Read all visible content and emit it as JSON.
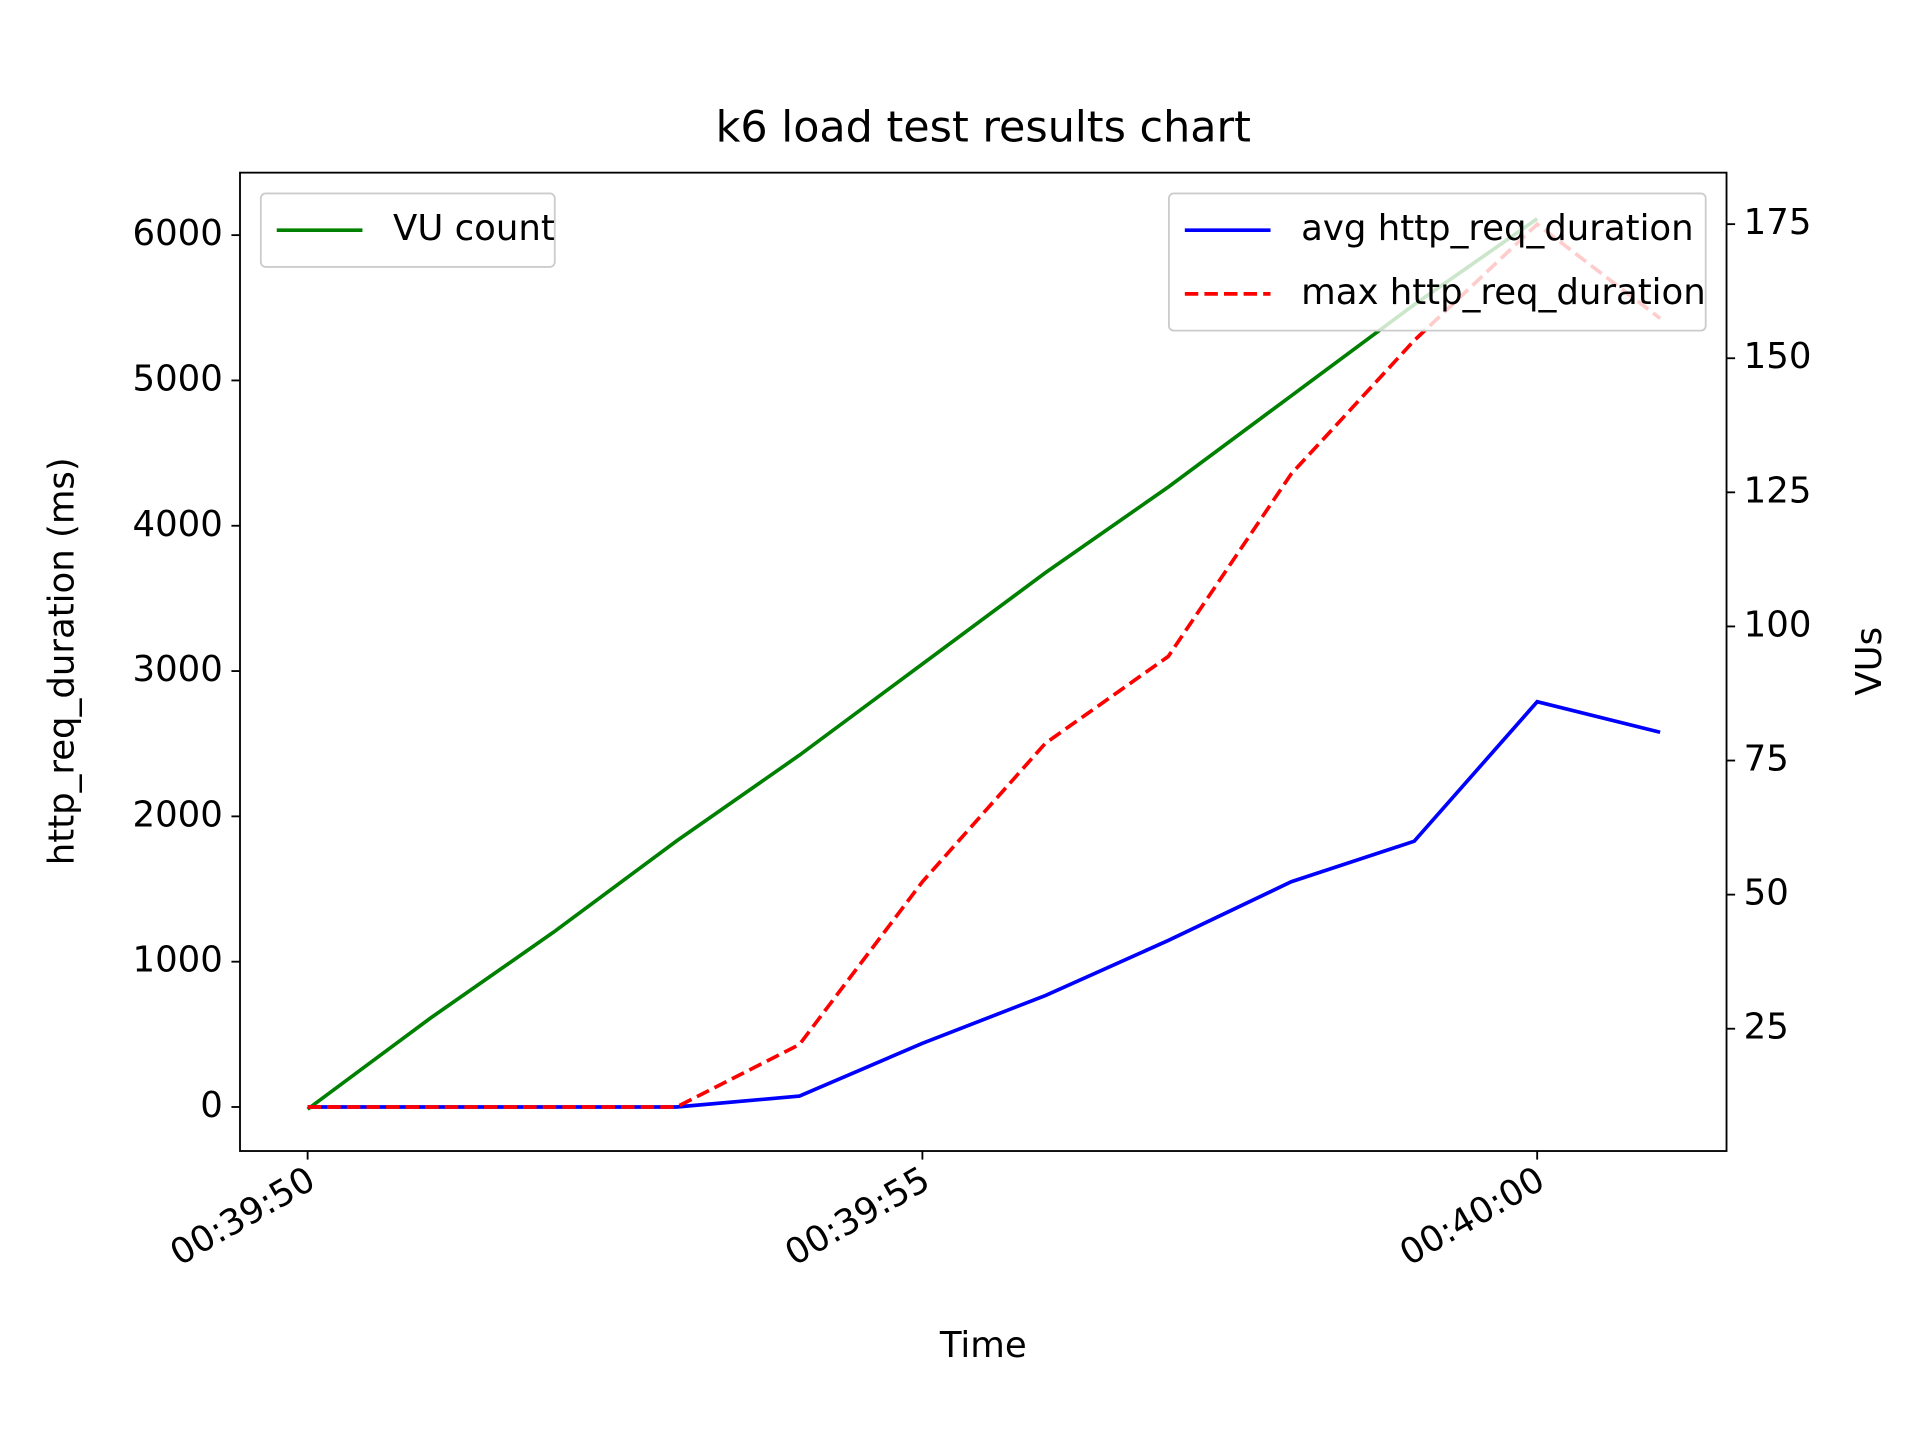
{
  "chart_data": {
    "type": "line",
    "title": "k6 load test results chart",
    "xlabel": "Time",
    "ylabel": "http_req_duration (ms)",
    "y2label": "VUs",
    "x": [
      "00:39:50",
      "00:39:51",
      "00:39:52",
      "00:39:53",
      "00:39:54",
      "00:39:55",
      "00:39:56",
      "00:39:57",
      "00:39:58",
      "00:39:59",
      "00:40:00",
      "00:40:01"
    ],
    "xlim": [
      "00:39:49.45",
      "00:40:01.54"
    ],
    "xticks": [
      "00:39:50",
      "00:39:55",
      "00:40:00"
    ],
    "ylim": [
      -303,
      6430
    ],
    "yticks": [
      0,
      1000,
      2000,
      3000,
      4000,
      5000,
      6000
    ],
    "y2lim": [
      2.2,
      184.6
    ],
    "y2ticks": [
      25,
      50,
      75,
      100,
      125,
      150,
      175
    ],
    "legend_loc": "upper right",
    "y2_legend_loc": "upper left",
    "series": [
      {
        "name": "avg http_req_duration",
        "color": "blue",
        "linestyle": "-",
        "values": [
          0,
          0,
          0,
          0,
          75,
          438,
          767,
          1146,
          1550,
          1829,
          2789,
          2579
        ]
      },
      {
        "name": "max http_req_duration",
        "color": "red",
        "linestyle": "--",
        "values": [
          0,
          0,
          0,
          0,
          430,
          1550,
          2503,
          3101,
          4357,
          5275,
          6075,
          5427
        ]
      },
      {
        "name": "VU count",
        "color": "green",
        "linestyle": "-",
        "axis": "y2",
        "values": [
          10,
          27,
          43,
          60,
          76,
          93,
          110,
          126,
          143,
          160,
          176,
          null
        ]
      }
    ]
  }
}
